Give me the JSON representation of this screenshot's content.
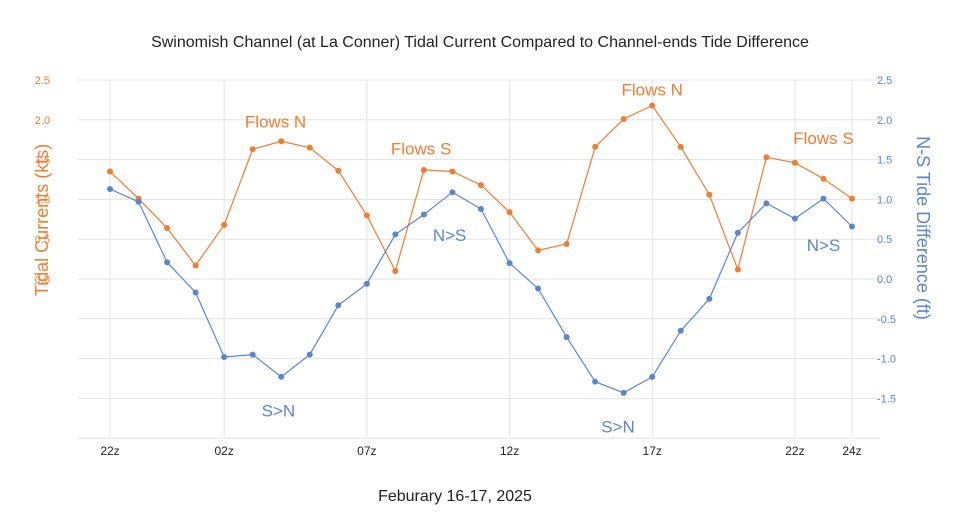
{
  "chart_data": {
    "type": "line",
    "title": "Swinomish Channel (at La Conner) Tidal Current Compared to Channel-ends Tide Difference",
    "xlabel": "Feburary 16-17, 2025",
    "ylabel_left": "Tidal Currents (kts)",
    "ylabel_right": "N-S Tide Difference (ft)",
    "x_ticks": [
      "22z",
      "02z",
      "07z",
      "12z",
      "17z",
      "22z",
      "24z"
    ],
    "x_tick_hours": [
      0,
      4,
      9,
      14,
      19,
      24,
      26
    ],
    "x_hours": [
      0,
      1,
      2,
      3,
      4,
      5,
      6,
      7,
      8,
      9,
      10,
      11,
      12,
      13,
      14,
      15,
      16,
      17,
      18,
      19,
      20,
      21,
      22,
      23,
      24,
      25,
      26
    ],
    "left_axis": {
      "ticks": [
        "0.0",
        "0.5",
        "1.0",
        "1.5",
        "2.0",
        "2.5"
      ],
      "ylim": [
        -2.0,
        2.5
      ]
    },
    "right_axis": {
      "ticks": [
        "-1.5",
        "-1.0",
        "-0.5",
        "0.0",
        "0.5",
        "1.0",
        "1.5",
        "2.0",
        "2.5"
      ],
      "ylim": [
        -2.0,
        2.5
      ]
    },
    "grid": true,
    "series": [
      {
        "axis": "left",
        "color": "#ef7d32",
        "values": [
          1.35,
          1.01,
          0.64,
          0.17,
          0.68,
          1.63,
          1.73,
          1.65,
          1.36,
          0.8,
          0.1,
          1.37,
          1.35,
          1.18,
          0.84,
          0.36,
          0.44,
          1.66,
          2.01,
          2.18,
          1.66,
          1.06,
          0.12,
          1.53,
          1.46,
          1.26,
          1.01
        ]
      },
      {
        "axis": "right",
        "color": "#5b86cf",
        "values": [
          1.13,
          0.97,
          0.21,
          -0.17,
          -0.98,
          -0.95,
          -1.23,
          -0.95,
          -0.33,
          -0.06,
          0.56,
          0.81,
          1.09,
          0.88,
          0.2,
          -0.12,
          -0.73,
          -1.29,
          -1.43,
          -1.23,
          -0.65,
          -0.25,
          0.58,
          0.95,
          0.76,
          1.01,
          0.66
        ]
      }
    ],
    "annotations": [
      {
        "text": "Flows N",
        "color": "orange",
        "x": 5.8,
        "y": 1.98
      },
      {
        "text": "Flows S",
        "color": "orange",
        "x": 10.9,
        "y": 1.64
      },
      {
        "text": "Flows N",
        "color": "orange",
        "x": 19.0,
        "y": 2.38
      },
      {
        "text": "Flows S",
        "color": "orange",
        "x": 25.0,
        "y": 1.77
      },
      {
        "text": "N>S",
        "color": "blue",
        "x": 11.9,
        "y": 0.55
      },
      {
        "text": "S>N",
        "color": "blue",
        "x": 5.9,
        "y": -1.65
      },
      {
        "text": "S>N",
        "color": "blue",
        "x": 17.8,
        "y": -1.85
      },
      {
        "text": "N>S",
        "color": "blue",
        "x": 25.0,
        "y": 0.43
      }
    ]
  }
}
